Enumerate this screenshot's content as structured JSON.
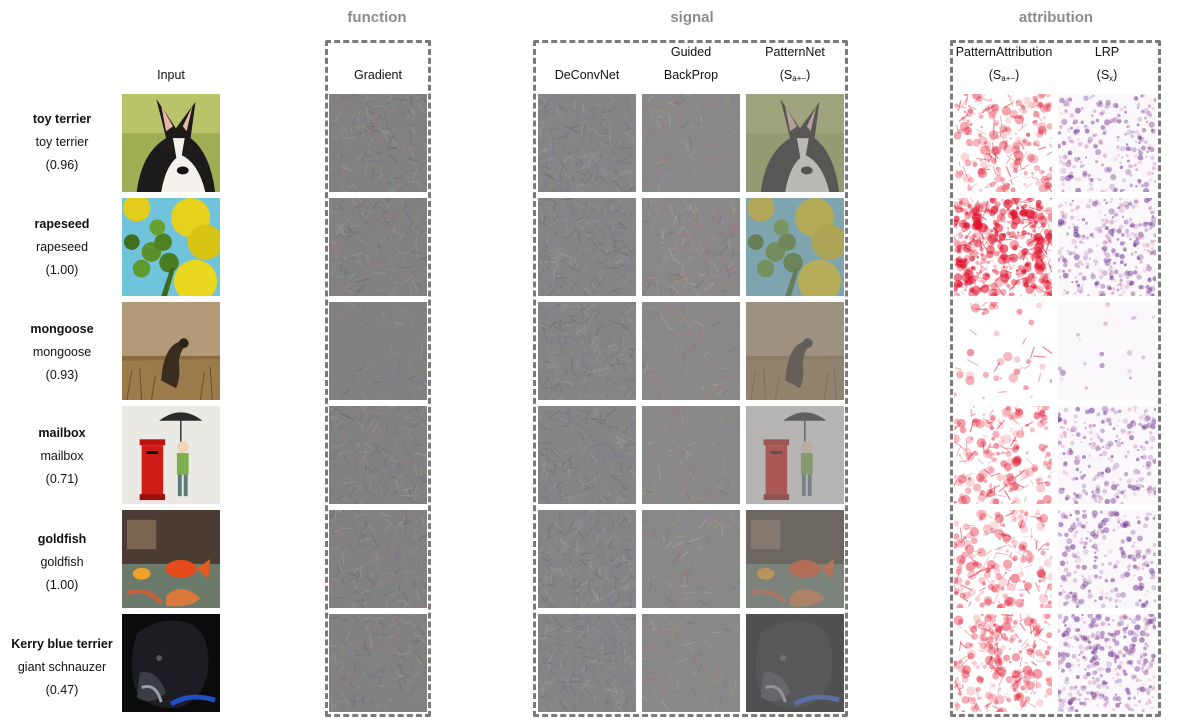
{
  "groups": {
    "function": "function",
    "signal": "signal",
    "attribution": "attribution"
  },
  "columns": {
    "input": "Input",
    "gradient": "Gradient",
    "deconvnet": "DeConvNet",
    "guided_line1": "Guided",
    "guided_line2": "BackProp",
    "patternnet_line1": "PatternNet",
    "patternnet_S": "(S",
    "patternnet_sub": "a+−",
    "patternnet_close": ")",
    "pattattr_line1": "PatternAttribution",
    "pattattr_S": "(S",
    "pattattr_sub": "a+−",
    "pattattr_close": ")",
    "lrp_line1": "LRP",
    "lrp_S": "(S",
    "lrp_sub": "x",
    "lrp_close": ")"
  },
  "rows": [
    {
      "true_label": "toy terrier",
      "predicted": "toy terrier",
      "score": "(0.96)"
    },
    {
      "true_label": "rapeseed",
      "predicted": "rapeseed",
      "score": "(1.00)"
    },
    {
      "true_label": "mongoose",
      "predicted": "mongoose",
      "score": "(0.93)"
    },
    {
      "true_label": "mailbox",
      "predicted": "mailbox",
      "score": "(0.71)"
    },
    {
      "true_label": "goldfish",
      "predicted": "goldfish",
      "score": "(1.00)"
    },
    {
      "true_label": "Kerry blue terrier",
      "predicted": "giant schnauzer",
      "score": "(0.47)"
    }
  ],
  "colors": {
    "border": "#7a7a7a",
    "group_title": "#8c8c8c",
    "signal_gray": "#808080",
    "attribution_red": "#e0102a",
    "lrp_purple": "#6a2c8c"
  }
}
